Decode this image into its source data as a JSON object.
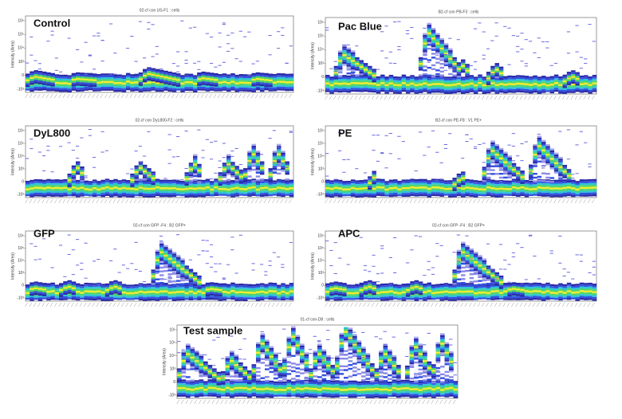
{
  "panels": [
    {
      "label": "Control",
      "header": "02-cf con US-F1 : cells"
    },
    {
      "label": "Pac Blue",
      "header": "B2-cf con PB-F3 : cells"
    },
    {
      "label": "DyL800",
      "header": "02-cf con DyL800-F2 : cells"
    },
    {
      "label": "PE",
      "header": "B2-cf con PE-F8 : V1 PE+"
    },
    {
      "label": "GFP",
      "header": "02-cf con GFP -F4 : B2 GFP+"
    },
    {
      "label": "APC",
      "header": "02-cf con GFP -F4 : B2 GFP+"
    },
    {
      "label": "Test sample",
      "header": "01-cf con-D8 : cells"
    }
  ],
  "axis_label": "Intensity (Area)",
  "yticks": [
    "10⁶",
    "10⁵",
    "10⁴",
    "10³",
    "0",
    "-10³"
  ]
}
